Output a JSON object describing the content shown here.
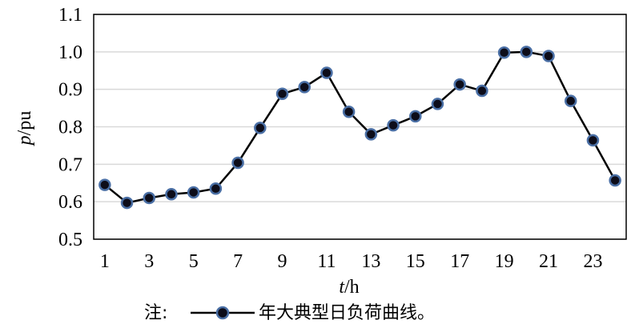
{
  "chart_data": {
    "type": "line",
    "x": [
      1,
      2,
      3,
      4,
      5,
      6,
      7,
      8,
      9,
      10,
      11,
      12,
      13,
      14,
      15,
      16,
      17,
      18,
      19,
      20,
      21,
      22,
      23,
      24
    ],
    "series": [
      {
        "name": "年大典型日负荷曲线",
        "values": [
          0.645,
          0.597,
          0.61,
          0.62,
          0.625,
          0.635,
          0.704,
          0.797,
          0.888,
          0.906,
          0.944,
          0.84,
          0.78,
          0.804,
          0.828,
          0.861,
          0.913,
          0.896,
          0.998,
          1.0,
          0.989,
          0.869,
          0.764,
          0.657
        ]
      }
    ],
    "ylim": [
      0.5,
      1.1
    ],
    "yticks": [
      "0.5",
      "0.6",
      "0.7",
      "0.8",
      "0.9",
      "1.0",
      "1.1"
    ],
    "xticks": [
      "1",
      "3",
      "5",
      "7",
      "9",
      "11",
      "13",
      "15",
      "17",
      "19",
      "21",
      "23"
    ],
    "xlabel_italic": "t",
    "xlabel_unit": "/h",
    "ylabel_italic": "p",
    "ylabel_unit": "/pu",
    "grid": true,
    "line_color": "#000000",
    "marker_fill": "#0d0d1a",
    "marker_stroke": "#4a6fa5"
  },
  "note": {
    "prefix": "注:",
    "text": "年大典型日负荷曲线。"
  }
}
